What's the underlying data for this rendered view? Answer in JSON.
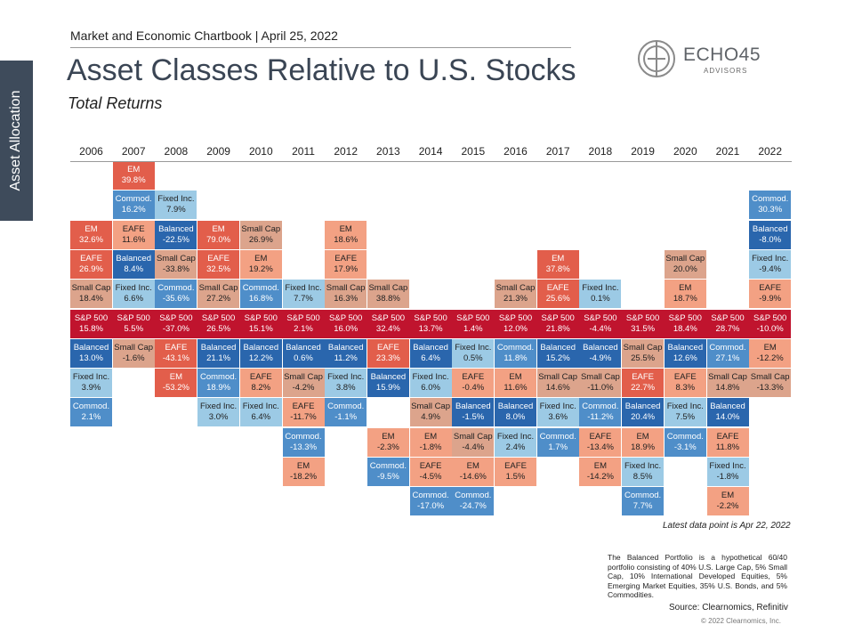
{
  "side_tab": "Asset Allocation",
  "header": {
    "top_label": "Market and Economic Chartbook | April 25, 2022",
    "title": "Asset Classes Relative to U.S. Stocks",
    "subtitle": "Total Returns"
  },
  "logo": {
    "name": "ECHO45",
    "sub": "ADVISORS"
  },
  "colors": {
    "sp500": "#c0142e",
    "dark_red": "#e25e4b",
    "light_red": "#f3a183",
    "tan": "#dca48c",
    "dark_blue": "#2a66ad",
    "mid_blue": "#4f8ec9",
    "light_blue": "#9ccae5"
  },
  "chart_data": {
    "type": "table",
    "title": "Asset Classes Relative to U.S. Stocks",
    "subtitle": "Total Returns",
    "years": [
      "2006",
      "2007",
      "2008",
      "2009",
      "2010",
      "2011",
      "2012",
      "2013",
      "2014",
      "2015",
      "2016",
      "2017",
      "2018",
      "2019",
      "2020",
      "2021",
      "2022"
    ],
    "columns": [
      {
        "year": "2006",
        "above": [
          [
            "Small Cap",
            "18.4%"
          ],
          [
            "EAFE",
            "26.9%"
          ],
          [
            "EM",
            "32.6%"
          ]
        ],
        "sp500": "15.8%",
        "below": [
          [
            "Balanced",
            "13.0%"
          ],
          [
            "Fixed Inc.",
            "3.9%"
          ],
          [
            "Commod.",
            "2.1%"
          ]
        ]
      },
      {
        "year": "2007",
        "above": [
          [
            "Fixed Inc.",
            "6.6%"
          ],
          [
            "Balanced",
            "8.4%"
          ],
          [
            "EAFE",
            "11.6%"
          ],
          [
            "Commod.",
            "16.2%"
          ],
          [
            "EM",
            "39.8%"
          ]
        ],
        "sp500": "5.5%",
        "below": [
          [
            "Small Cap",
            "-1.6%"
          ]
        ]
      },
      {
        "year": "2008",
        "above": [
          [
            "Commod.",
            "-35.6%"
          ],
          [
            "Small Cap",
            "-33.8%"
          ],
          [
            "Balanced",
            "-22.5%"
          ],
          [
            "Fixed Inc.",
            "7.9%"
          ]
        ],
        "sp500": "-37.0%",
        "below": [
          [
            "EAFE",
            "-43.1%"
          ],
          [
            "EM",
            "-53.2%"
          ]
        ]
      },
      {
        "year": "2009",
        "above": [
          [
            "Small Cap",
            "27.2%"
          ],
          [
            "EAFE",
            "32.5%"
          ],
          [
            "EM",
            "79.0%"
          ]
        ],
        "sp500": "26.5%",
        "below": [
          [
            "Balanced",
            "21.1%"
          ],
          [
            "Commod.",
            "18.9%"
          ],
          [
            "Fixed Inc.",
            "3.0%"
          ]
        ]
      },
      {
        "year": "2010",
        "above": [
          [
            "Commod.",
            "16.8%"
          ],
          [
            "EM",
            "19.2%"
          ],
          [
            "Small Cap",
            "26.9%"
          ]
        ],
        "sp500": "15.1%",
        "below": [
          [
            "Balanced",
            "12.2%"
          ],
          [
            "EAFE",
            "8.2%"
          ],
          [
            "Fixed Inc.",
            "6.4%"
          ]
        ]
      },
      {
        "year": "2011",
        "above": [
          [
            "Fixed Inc.",
            "7.7%"
          ]
        ],
        "sp500": "2.1%",
        "below": [
          [
            "Balanced",
            "0.6%"
          ],
          [
            "Small Cap",
            "-4.2%"
          ],
          [
            "EAFE",
            "-11.7%"
          ],
          [
            "Commod.",
            "-13.3%"
          ],
          [
            "EM",
            "-18.2%"
          ]
        ]
      },
      {
        "year": "2012",
        "above": [
          [
            "Small Cap",
            "16.3%"
          ],
          [
            "EAFE",
            "17.9%"
          ],
          [
            "EM",
            "18.6%"
          ]
        ],
        "sp500": "16.0%",
        "below": [
          [
            "Balanced",
            "11.2%"
          ],
          [
            "Fixed Inc.",
            "3.8%"
          ],
          [
            "Commod.",
            "-1.1%"
          ]
        ]
      },
      {
        "year": "2013",
        "above": [
          [
            "Small Cap",
            "38.8%"
          ]
        ],
        "sp500": "32.4%",
        "below": [
          [
            "EAFE",
            "23.3%"
          ],
          [
            "Balanced",
            "15.9%"
          ],
          [
            null,
            null
          ],
          [
            "EM",
            "-2.3%"
          ],
          [
            "Commod.",
            "-9.5%"
          ]
        ]
      },
      {
        "year": "2014",
        "above": [],
        "sp500": "13.7%",
        "below": [
          [
            "Balanced",
            "6.4%"
          ],
          [
            "Fixed Inc.",
            "6.0%"
          ],
          [
            "Small Cap",
            "4.9%"
          ],
          [
            "EM",
            "-1.8%"
          ],
          [
            "EAFE",
            "-4.5%"
          ],
          [
            "Commod.",
            "-17.0%"
          ]
        ]
      },
      {
        "year": "2015",
        "above": [],
        "sp500": "1.4%",
        "below": [
          [
            "Fixed Inc.",
            "0.5%"
          ],
          [
            "EAFE",
            "-0.4%"
          ],
          [
            "Balanced",
            "-1.5%"
          ],
          [
            "Small Cap",
            "-4.4%"
          ],
          [
            "EM",
            "-14.6%"
          ],
          [
            "Commod.",
            "-24.7%"
          ]
        ]
      },
      {
        "year": "2016",
        "above": [
          [
            "Small Cap",
            "21.3%"
          ]
        ],
        "sp500": "12.0%",
        "below": [
          [
            "Commod.",
            "11.8%"
          ],
          [
            "EM",
            "11.6%"
          ],
          [
            "Balanced",
            "8.0%"
          ],
          [
            "Fixed Inc.",
            "2.4%"
          ],
          [
            "EAFE",
            "1.5%"
          ]
        ]
      },
      {
        "year": "2017",
        "above": [
          [
            "EAFE",
            "25.6%"
          ],
          [
            "EM",
            "37.8%"
          ]
        ],
        "sp500": "21.8%",
        "below": [
          [
            "Balanced",
            "15.2%"
          ],
          [
            "Small Cap",
            "14.6%"
          ],
          [
            "Fixed Inc.",
            "3.6%"
          ],
          [
            "Commod.",
            "1.7%"
          ]
        ]
      },
      {
        "year": "2018",
        "above": [
          [
            "Fixed Inc.",
            "0.1%"
          ]
        ],
        "sp500": "-4.4%",
        "below": [
          [
            "Balanced",
            "-4.9%"
          ],
          [
            "Small Cap",
            "-11.0%"
          ],
          [
            "Commod.",
            "-11.2%"
          ],
          [
            "EAFE",
            "-13.4%"
          ],
          [
            "EM",
            "-14.2%"
          ]
        ]
      },
      {
        "year": "2019",
        "above": [],
        "sp500": "31.5%",
        "below": [
          [
            "Small Cap",
            "25.5%"
          ],
          [
            "EAFE",
            "22.7%"
          ],
          [
            "Balanced",
            "20.4%"
          ],
          [
            "EM",
            "18.9%"
          ],
          [
            "Fixed Inc.",
            "8.5%"
          ],
          [
            "Commod.",
            "7.7%"
          ]
        ]
      },
      {
        "year": "2020",
        "above": [
          [
            "EM",
            "18.7%"
          ],
          [
            "Small Cap",
            "20.0%"
          ]
        ],
        "sp500": "18.4%",
        "below": [
          [
            "Balanced",
            "12.6%"
          ],
          [
            "EAFE",
            "8.3%"
          ],
          [
            "Fixed Inc.",
            "7.5%"
          ],
          [
            "Commod.",
            "-3.1%"
          ]
        ]
      },
      {
        "year": "2021",
        "above": [],
        "sp500": "28.7%",
        "below": [
          [
            "Commod.",
            "27.1%"
          ],
          [
            "Small Cap",
            "14.8%"
          ],
          [
            "Balanced",
            "14.0%"
          ],
          [
            "EAFE",
            "11.8%"
          ],
          [
            "Fixed Inc.",
            "-1.8%"
          ],
          [
            "EM",
            "-2.2%"
          ]
        ]
      },
      {
        "year": "2022",
        "above": [
          [
            "EAFE",
            "-9.9%"
          ],
          [
            "Fixed Inc.",
            "-9.4%"
          ],
          [
            "Balanced",
            "-8.0%"
          ],
          [
            "Commod.",
            "30.3%"
          ]
        ],
        "sp500": "-10.0%",
        "below": [
          [
            "EM",
            "-12.2%"
          ],
          [
            "Small Cap",
            "-13.3%"
          ]
        ]
      }
    ]
  },
  "notes": {
    "data_point": "Latest data point is Apr 22, 2022",
    "footnote": "The Balanced Portfolio is a hypothetical 60/40 portfolio consisting of 40% U.S. Large Cap, 5% Small Cap, 10% International Developed Equities, 5% Emerging Market Equities, 35% U.S. Bonds, and 5% Commodities.",
    "source": "Source: Clearnomics, Refinitiv",
    "copyright": "© 2022 Clearnomics, Inc."
  }
}
